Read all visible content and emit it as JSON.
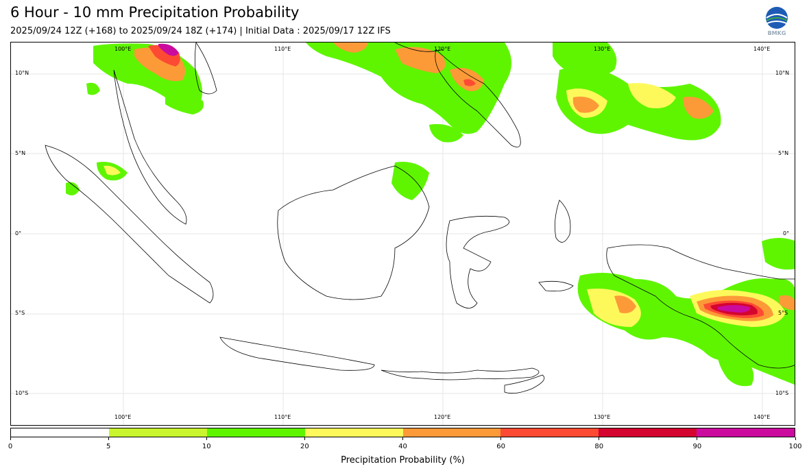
{
  "header": {
    "title": "6 Hour - 10 mm Precipitation Probability",
    "subtitle": "2025/09/24 12Z (+168) to 2025/09/24 18Z (+174) | Initial Data : 2025/09/17 12Z IFS",
    "logo_text": "BMKG"
  },
  "map": {
    "lon_ticks_top": [
      "100°E",
      "110°E",
      "120°E",
      "130°E",
      "140°E"
    ],
    "lon_ticks_bottom": [
      "100°E",
      "110°E",
      "120°E",
      "130°E",
      "140°E"
    ],
    "lat_ticks_left": [
      "10°N",
      "5°N",
      "0°",
      "5°S",
      "10°S"
    ],
    "lat_ticks_right": [
      "10°N",
      "5°N",
      "0°",
      "5°S",
      "10°S"
    ],
    "gridlines": true,
    "coastline_color": "#000000"
  },
  "colorbar": {
    "label": "Precipitation Probability (%)",
    "ticks": [
      "0",
      "5",
      "10",
      "20",
      "40",
      "60",
      "80",
      "90",
      "100"
    ],
    "colors": [
      "#ffffff",
      "#c8f52d",
      "#5ff500",
      "#fdf95b",
      "#fd9a38",
      "#fd4b33",
      "#d4042f",
      "#cb0b9e"
    ]
  }
}
